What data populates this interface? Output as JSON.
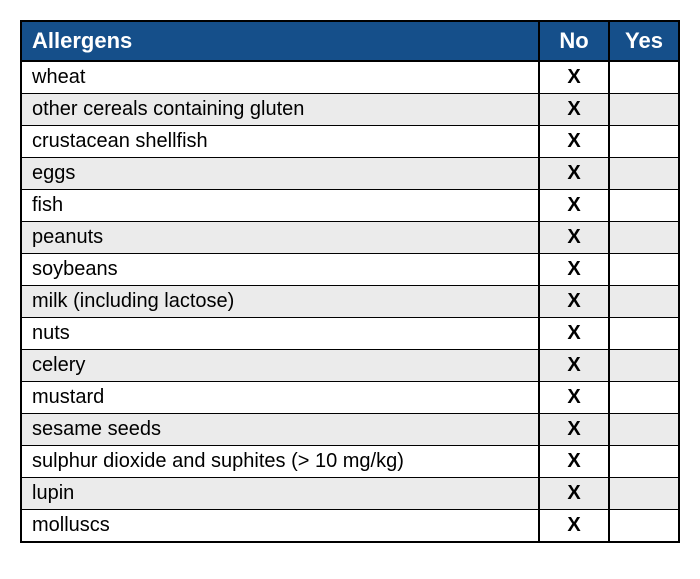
{
  "table": {
    "type": "table",
    "header_bg": "#154f8a",
    "header_fg": "#ffffff",
    "row_bg_odd": "#ffffff",
    "row_bg_even": "#ebebeb",
    "border_color": "#000000",
    "mark_char": "X",
    "font_family": "Arial",
    "header_fontsize": 22,
    "body_fontsize": 20,
    "columns": [
      {
        "key": "name",
        "label": "Allergens",
        "align": "left"
      },
      {
        "key": "no",
        "label": "No",
        "align": "center",
        "width": 70
      },
      {
        "key": "yes",
        "label": "Yes",
        "align": "center",
        "width": 70
      }
    ],
    "rows": [
      {
        "name": "wheat",
        "no": "X",
        "yes": ""
      },
      {
        "name": "other cereals containing gluten",
        "no": "X",
        "yes": ""
      },
      {
        "name": "crustacean shellfish",
        "no": "X",
        "yes": ""
      },
      {
        "name": "eggs",
        "no": "X",
        "yes": ""
      },
      {
        "name": "fish",
        "no": "X",
        "yes": ""
      },
      {
        "name": "peanuts",
        "no": "X",
        "yes": ""
      },
      {
        "name": "soybeans",
        "no": "X",
        "yes": ""
      },
      {
        "name": "milk (including lactose)",
        "no": "X",
        "yes": ""
      },
      {
        "name": "nuts",
        "no": "X",
        "yes": ""
      },
      {
        "name": "celery",
        "no": "X",
        "yes": ""
      },
      {
        "name": "mustard",
        "no": "X",
        "yes": ""
      },
      {
        "name": "sesame seeds",
        "no": "X",
        "yes": ""
      },
      {
        "name": "sulphur dioxide and suphites (> 10 mg/kg)",
        "no": "X",
        "yes": ""
      },
      {
        "name": "lupin",
        "no": "X",
        "yes": ""
      },
      {
        "name": "molluscs",
        "no": "X",
        "yes": ""
      }
    ]
  }
}
